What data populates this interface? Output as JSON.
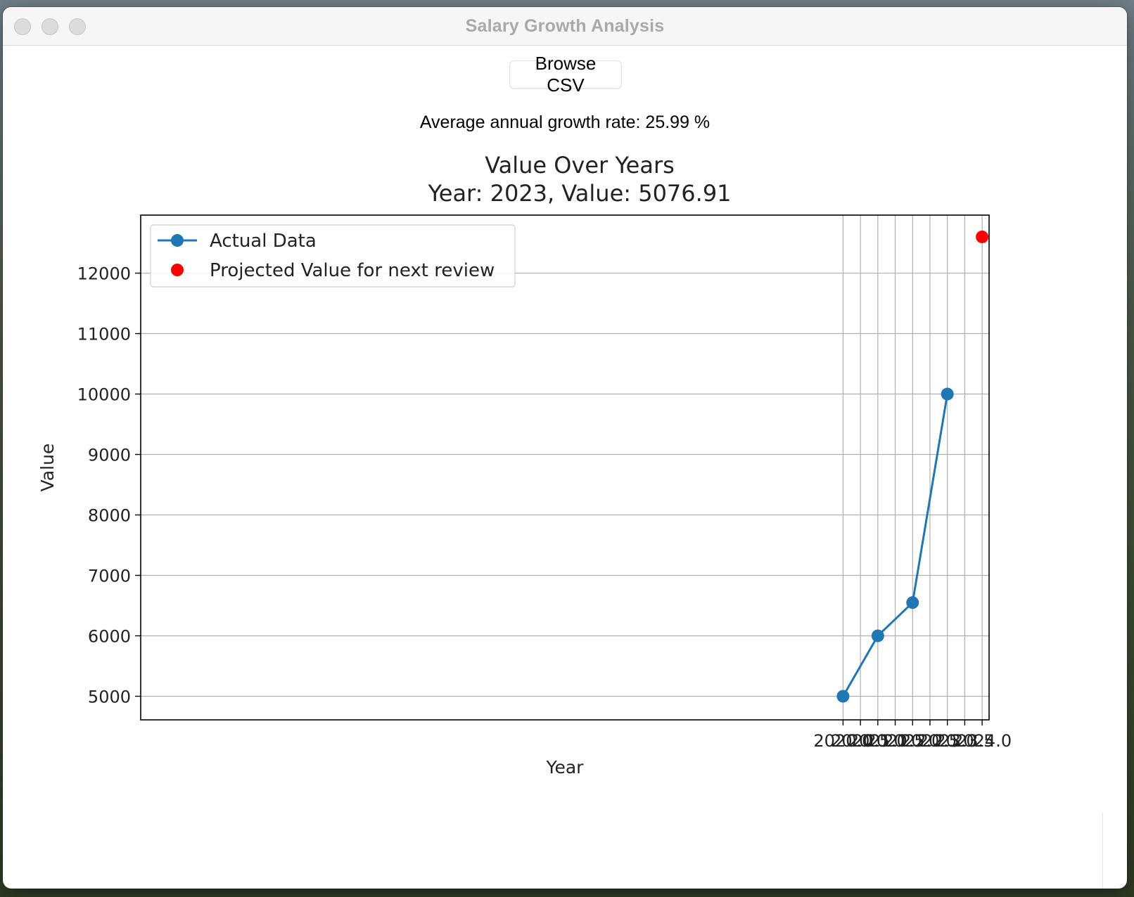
{
  "window": {
    "title": "Salary Growth Analysis"
  },
  "toolbar": {
    "browse_label": "Browse CSV"
  },
  "status": {
    "growth_text": "Average annual growth rate: 25.99 %"
  },
  "colors": {
    "actual": "#1f77b4",
    "projected": "#ff0000",
    "grid": "#b0b0b0"
  },
  "chart_data": {
    "type": "line",
    "title": "Value Over Years",
    "subtitle": "Year: 2023, Value: 5076.91",
    "xlabel": "Year",
    "ylabel": "Value",
    "xlim": [
      1999.8,
      2024.2
    ],
    "ylim": [
      4610,
      12960
    ],
    "grid": true,
    "legend_position": "top-left",
    "x_ticks": [
      2020.0,
      2020.5,
      2021.0,
      2021.5,
      2022.0,
      2022.5,
      2023.0,
      2023.5,
      2024.0
    ],
    "x_tick_labels": [
      "2020.0",
      "2020.5",
      "2021.0",
      "2021.5",
      "2022.0",
      "2022.5",
      "2023.0",
      "2023.5",
      "2024.0"
    ],
    "y_ticks": [
      5000,
      6000,
      7000,
      8000,
      9000,
      10000,
      11000,
      12000
    ],
    "y_tick_labels": [
      "5000",
      "6000",
      "7000",
      "8000",
      "9000",
      "10000",
      "11000",
      "12000"
    ],
    "series": [
      {
        "name": "Actual Data",
        "kind": "line-marker",
        "x": [
          2020,
          2021,
          2022,
          2023
        ],
        "y": [
          5000,
          6000,
          6550,
          10000
        ]
      },
      {
        "name": "Projected Value for next review",
        "kind": "scatter",
        "x": [
          2024
        ],
        "y": [
          12600
        ]
      }
    ]
  }
}
